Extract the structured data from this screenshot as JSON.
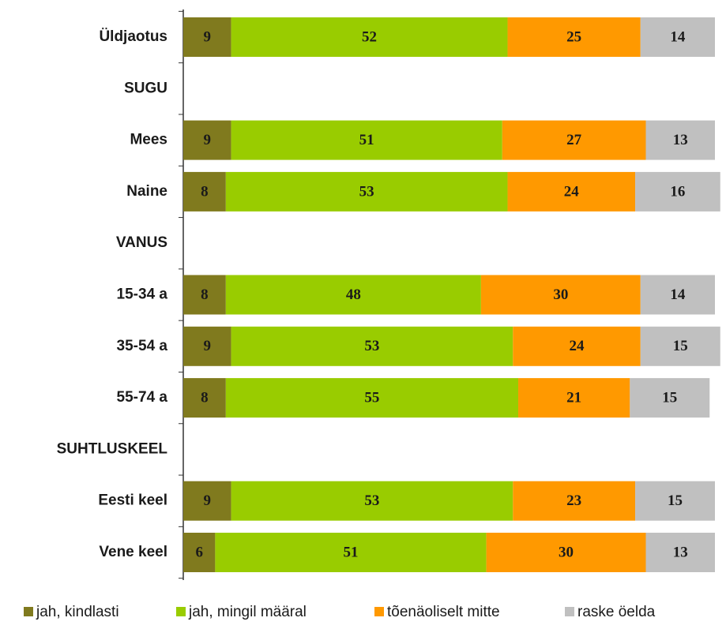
{
  "chart_data": {
    "type": "stacked-bar-horizontal",
    "categories": [
      "Üldjaotus",
      "SUGU",
      "Mees",
      "Naine",
      "VANUS",
      "15-34 a",
      "35-54 a",
      "55-74 a",
      "SUHTLUSKEEL",
      "Eesti keel",
      "Vene keel"
    ],
    "series": [
      {
        "name": "jah, kindlasti",
        "color": "#807a1e",
        "values": [
          9,
          null,
          9,
          8,
          null,
          8,
          9,
          8,
          null,
          9,
          6
        ]
      },
      {
        "name": "jah, mingil määral",
        "color": "#99cc00",
        "values": [
          52,
          null,
          51,
          53,
          null,
          48,
          53,
          55,
          null,
          53,
          51
        ]
      },
      {
        "name": "tõenäoliselt mitte",
        "color": "#ff9900",
        "values": [
          25,
          null,
          27,
          24,
          null,
          30,
          24,
          21,
          null,
          23,
          30
        ]
      },
      {
        "name": "raske öelda",
        "color": "#c0c0c0",
        "values": [
          14,
          null,
          13,
          16,
          null,
          14,
          15,
          15,
          null,
          15,
          13
        ]
      }
    ],
    "xlim": [
      0,
      100
    ],
    "legend": "bottom"
  }
}
